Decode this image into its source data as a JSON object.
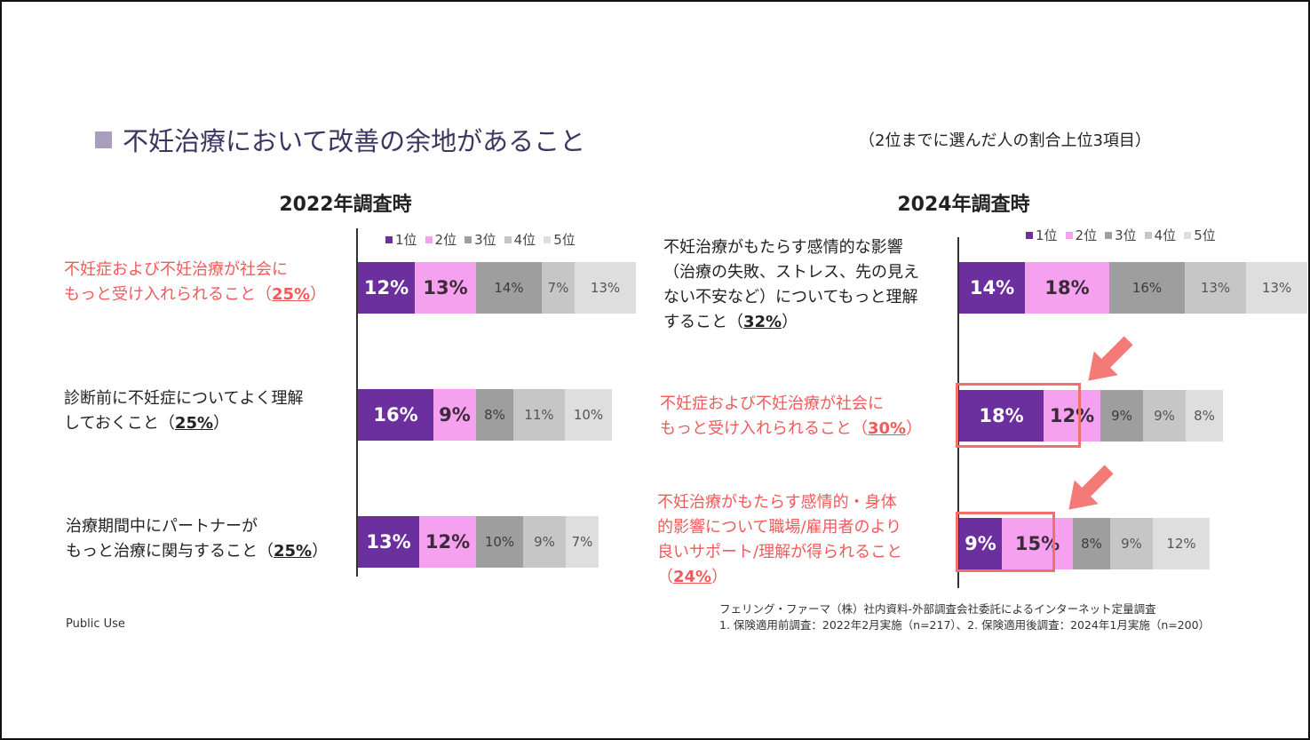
{
  "header": {
    "title": "不妊治療において改善の余地があること",
    "subtitle": "（2位までに選んだ人の割合上位3項目）"
  },
  "legend": [
    "1位",
    "2位",
    "3位",
    "4位",
    "5位"
  ],
  "colors": {
    "rank1": "#6b2f9e",
    "rank2": "#f6a0f0",
    "rank3": "#9e9e9e",
    "rank4": "#c6c6c6",
    "rank5": "#dedede",
    "highlight_text": "#f05a5a",
    "highlight_box": "#f07070",
    "arrow": "#f47a78"
  },
  "chart_data": [
    {
      "type": "bar",
      "orientation": "horizontal",
      "stacked": true,
      "title": "2022年調査時",
      "series_names": [
        "1位",
        "2位",
        "3位",
        "4位",
        "5位"
      ],
      "items": [
        {
          "label_lines": [
            "不妊症および不妊治療が社会に",
            "もっと受け入れられること（"
          ],
          "pct": "25%",
          "suffix": "）",
          "highlight": true,
          "boxed": false,
          "values": [
            12,
            13,
            14,
            7,
            13
          ],
          "value_labels": [
            "12%",
            "13%",
            "14%",
            "7%",
            "13%"
          ]
        },
        {
          "label_lines": [
            "診断前に不妊症についてよく理解",
            "しておくこと（"
          ],
          "pct": "25%",
          "suffix": "）",
          "highlight": false,
          "boxed": false,
          "values": [
            16,
            9,
            8,
            11,
            10
          ],
          "value_labels": [
            "16%",
            "9%",
            "8%",
            "11%",
            "10%"
          ]
        },
        {
          "label_lines": [
            "治療期間中にパートナーが",
            "もっと治療に関与すること（"
          ],
          "pct": "25%",
          "suffix": "）",
          "highlight": false,
          "boxed": false,
          "values": [
            13,
            12,
            10,
            9,
            7
          ],
          "value_labels": [
            "13%",
            "12%",
            "10%",
            "9%",
            "7%"
          ]
        }
      ]
    },
    {
      "type": "bar",
      "orientation": "horizontal",
      "stacked": true,
      "title": "2024年調査時",
      "series_names": [
        "1位",
        "2位",
        "3位",
        "4位",
        "5位"
      ],
      "items": [
        {
          "label_lines": [
            "不妊治療がもたらす感情的な影響",
            "（治療の失敗、ストレス、先の見え",
            "ない不安など）についてもっと理解",
            "すること（"
          ],
          "pct": "32%",
          "suffix": "）",
          "highlight": false,
          "boxed": false,
          "values": [
            14,
            18,
            16,
            13,
            13
          ],
          "value_labels": [
            "14%",
            "18%",
            "16%",
            "13%",
            "13%"
          ]
        },
        {
          "label_lines": [
            "不妊症および不妊治療が社会に",
            "もっと受け入れられること（"
          ],
          "pct": "30%",
          "suffix": "）",
          "highlight": true,
          "boxed": true,
          "values": [
            18,
            12,
            9,
            9,
            8
          ],
          "value_labels": [
            "18%",
            "12%",
            "9%",
            "9%",
            "8%"
          ]
        },
        {
          "label_lines": [
            "不妊治療がもたらす感情的・身体",
            "的影響について職場/雇用者のより",
            "良いサポート/理解が得られること",
            "（"
          ],
          "pct": "24%",
          "suffix": "）",
          "highlight": true,
          "boxed": true,
          "values": [
            9,
            15,
            8,
            9,
            12
          ],
          "value_labels": [
            "9%",
            "15%",
            "8%",
            "9%",
            "12%"
          ]
        }
      ]
    }
  ],
  "footnote": {
    "line1": "フェリング・ファーマ（株）社内資料-外部調査会社委託によるインターネット定量調査",
    "line2": "1. 保険適用前調査：2022年2月実施（n=217）、2. 保険適用後調査：2024年1月実施（n=200）"
  },
  "public_use": "Public Use"
}
